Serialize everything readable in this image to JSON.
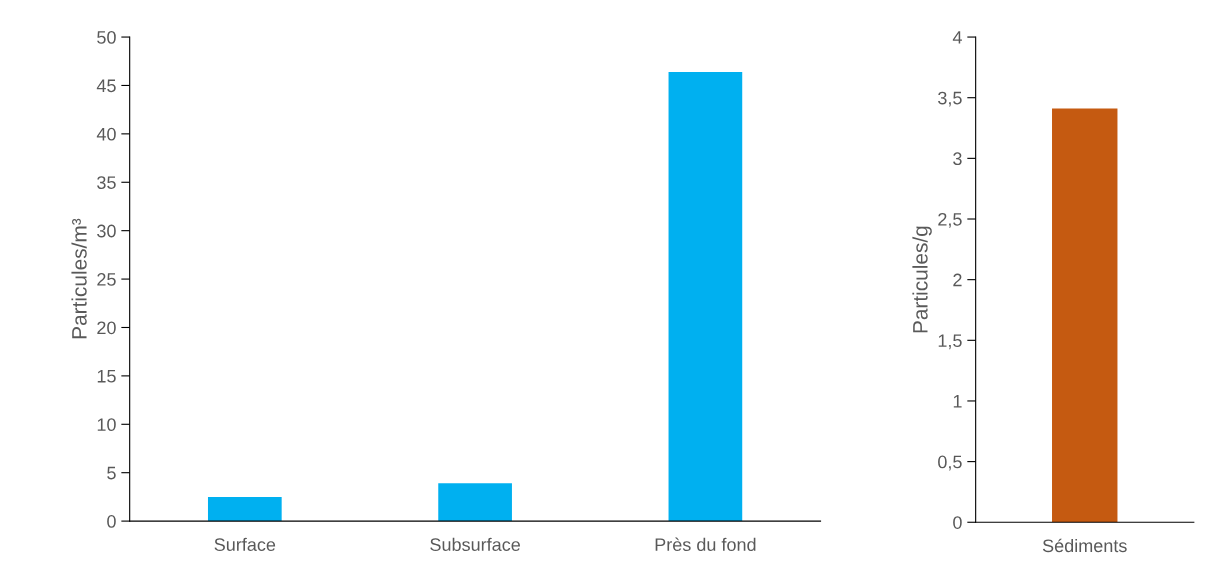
{
  "chart_data": [
    {
      "type": "bar",
      "ylabel": "Particules/m³",
      "categories": [
        "Surface",
        "Subsurface",
        "Près du fond"
      ],
      "values": [
        2.5,
        3.9,
        46.4
      ],
      "color": "#00b0f0",
      "ylim": [
        0,
        50
      ],
      "yticks": [
        0,
        5,
        10,
        15,
        20,
        25,
        30,
        35,
        40,
        45,
        50
      ],
      "grid": false,
      "legend": false
    },
    {
      "type": "bar",
      "ylabel": "Particules/g",
      "categories": [
        "Sédiments"
      ],
      "values": [
        3.41
      ],
      "color": "#c55a11",
      "ylim": [
        0,
        4
      ],
      "yticks": [
        0,
        {
          "value": 0.5,
          "label": "0,5"
        },
        1,
        {
          "value": 1.5,
          "label": "1,5"
        },
        2,
        {
          "value": 2.5,
          "label": "2,5"
        },
        3,
        {
          "value": 3.5,
          "label": "3,5"
        },
        4
      ],
      "grid": false,
      "legend": false
    }
  ]
}
